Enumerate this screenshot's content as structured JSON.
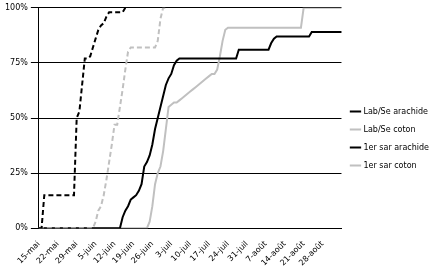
{
  "chart_data": {
    "type": "line",
    "categories": [
      "15-mai",
      null,
      null,
      null,
      null,
      null,
      null,
      "22-mai",
      null,
      null,
      null,
      null,
      null,
      null,
      "29-mai",
      null,
      null,
      null,
      null,
      null,
      null,
      "5-juin",
      null,
      null,
      null,
      null,
      null,
      null,
      "12-juin",
      null,
      null,
      null,
      null,
      null,
      null,
      "19-juin",
      null,
      null,
      null,
      null,
      null,
      null,
      "26-juin",
      null,
      null,
      null,
      null,
      null,
      null,
      "3-juil",
      null,
      null,
      null,
      null,
      null,
      null,
      "10-juil",
      null,
      null,
      null,
      null,
      null,
      null,
      "17-juil",
      null,
      null,
      null,
      null,
      null,
      null,
      "24-juil",
      null,
      null,
      null,
      null,
      null,
      null,
      "31-juil",
      null,
      null,
      null,
      null,
      null,
      null,
      "7-août",
      null,
      null,
      null,
      null,
      null,
      null,
      "14-août",
      null,
      null,
      null,
      null,
      null,
      null,
      "21-août",
      null,
      null,
      null,
      null,
      null,
      null,
      "28-août",
      null,
      null,
      null,
      null,
      null,
      null,
      null
    ],
    "series": [
      {
        "name": "Lab/Se arachide",
        "color": "#000000",
        "line_style": "dashed",
        "values": [
          0,
          0,
          15,
          15,
          15,
          15,
          15,
          15,
          15,
          15,
          15,
          15,
          15,
          15,
          50,
          53,
          65,
          77,
          77,
          78,
          82,
          86,
          90,
          92,
          93,
          96,
          98,
          98,
          98,
          98,
          98,
          98,
          100,
          100,
          null,
          null,
          null,
          null,
          null,
          null,
          null,
          null,
          null,
          null,
          null,
          null,
          null,
          null,
          null,
          null,
          null,
          null,
          null,
          null,
          null,
          null,
          null,
          null,
          null,
          null,
          null,
          null,
          null,
          null,
          null,
          null,
          null,
          null,
          null,
          null,
          null,
          null,
          null,
          null,
          null,
          null,
          null,
          null,
          null,
          null,
          null,
          null,
          null,
          null,
          null,
          null,
          null,
          null,
          null,
          null,
          null,
          null,
          null,
          null,
          null,
          null,
          null,
          null,
          null,
          null,
          null,
          null,
          null,
          null,
          null,
          null,
          null,
          null,
          null,
          null,
          null,
          null,
          null
        ]
      },
      {
        "name": "Lab/Se coton",
        "color": "#c0c0c0",
        "line_style": "dashed",
        "values": [
          0,
          0,
          0,
          0,
          0,
          0,
          0,
          0,
          0,
          0,
          0,
          0,
          0,
          0,
          0,
          0,
          0,
          0,
          0,
          0,
          0,
          3,
          8,
          10,
          15,
          22,
          30,
          38,
          47,
          47,
          55,
          63,
          72,
          80,
          82,
          82,
          82,
          82,
          82,
          82,
          82,
          82,
          82,
          82,
          85,
          95,
          100,
          100,
          null,
          null,
          null,
          null,
          null,
          null,
          null,
          null,
          null,
          null,
          null,
          null,
          null,
          null,
          null,
          null,
          null,
          null,
          null,
          null,
          null,
          null,
          null,
          null,
          null,
          null,
          null,
          null,
          null,
          null,
          null,
          null,
          null,
          null,
          null,
          null,
          null,
          null,
          null,
          null,
          null,
          null,
          null,
          null,
          null,
          null,
          null,
          null,
          null,
          null,
          null,
          null,
          null,
          null,
          null,
          null,
          null,
          null,
          null,
          null,
          null,
          null,
          null,
          null,
          null
        ]
      },
      {
        "name": "1er sar arachide",
        "color": "#000000",
        "line_style": "solid",
        "values": [
          0,
          0,
          0,
          0,
          0,
          0,
          0,
          0,
          0,
          0,
          0,
          0,
          0,
          0,
          0,
          0,
          0,
          0,
          0,
          0,
          0,
          0,
          0,
          0,
          0,
          0,
          0,
          0,
          0,
          0,
          0,
          5,
          8,
          10,
          13,
          14,
          15,
          17,
          20,
          28,
          30,
          33,
          38,
          45,
          50,
          55,
          60,
          65,
          68,
          70,
          74,
          76,
          77,
          77,
          77,
          77,
          77,
          77,
          77,
          77,
          77,
          77,
          77,
          77,
          77,
          77,
          77,
          77,
          77,
          77,
          77,
          77,
          77,
          77,
          81,
          81,
          81,
          81,
          81,
          81,
          81,
          81,
          81,
          81,
          81,
          81,
          84,
          86,
          87,
          87,
          87,
          87,
          87,
          87,
          87,
          87,
          87,
          87,
          87,
          87,
          87,
          89,
          89,
          89,
          89,
          89,
          89,
          89,
          89,
          89,
          89,
          89,
          89
        ]
      },
      {
        "name": "1er sar coton",
        "color": "#c0c0c0",
        "line_style": "solid",
        "values": [
          0,
          0,
          0,
          0,
          0,
          0,
          0,
          0,
          0,
          0,
          0,
          0,
          0,
          0,
          0,
          0,
          0,
          0,
          0,
          0,
          0,
          0,
          0,
          0,
          0,
          0,
          0,
          0,
          0,
          0,
          0,
          0,
          0,
          0,
          0,
          0,
          0,
          0,
          0,
          0,
          0,
          3,
          10,
          20,
          25,
          28,
          35,
          45,
          55,
          56,
          57,
          57,
          58,
          59,
          60,
          61,
          62,
          63,
          64,
          65,
          66,
          67,
          68,
          69,
          70,
          70,
          72,
          78,
          85,
          90,
          91,
          91,
          91,
          91,
          91,
          91,
          91,
          91,
          91,
          91,
          91,
          91,
          91,
          91,
          91,
          91,
          91,
          91,
          91,
          91,
          91,
          91,
          91,
          91,
          91,
          91,
          91,
          91,
          100,
          100,
          100,
          100,
          100,
          100,
          100,
          100,
          100,
          100,
          100,
          100,
          100,
          100,
          100
        ]
      }
    ],
    "ylim": [
      0,
      100
    ],
    "yticks": [
      {
        "value": 0,
        "label": "0%"
      },
      {
        "value": 25,
        "label": "25%"
      },
      {
        "value": 50,
        "label": "50%"
      },
      {
        "value": 75,
        "label": "75%"
      },
      {
        "value": 100,
        "label": "100%"
      }
    ],
    "grid": "y",
    "legend": "right"
  }
}
